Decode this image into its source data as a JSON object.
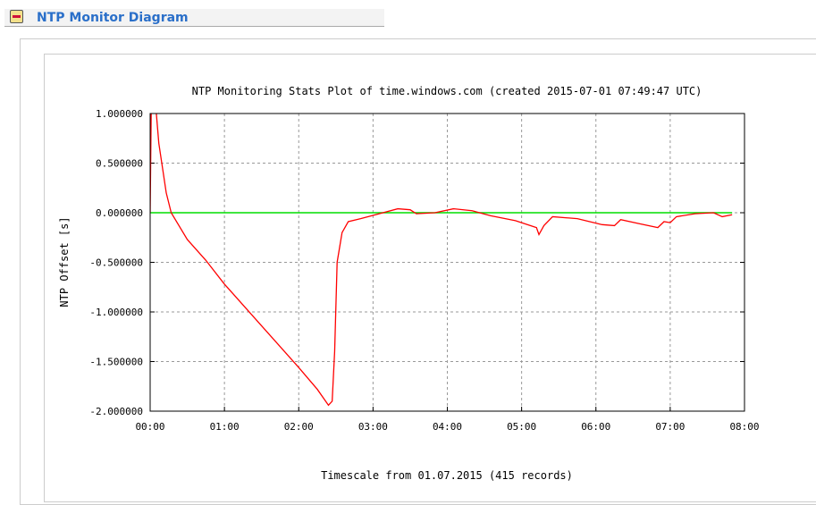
{
  "section": {
    "title": "NTP Monitor Diagram",
    "toggle_icon": "collapse-minus-icon"
  },
  "chart_data": {
    "type": "line",
    "title": "NTP Monitoring Stats Plot of time.windows.com (created 2015-07-01 07:49:47 UTC)",
    "xlabel": "Timescale from 01.07.2015 (415 records)",
    "ylabel": "NTP Offset [s]",
    "xlim": [
      "00:00",
      "08:00"
    ],
    "ylim": [
      -2.0,
      1.0
    ],
    "xticks": [
      "00:00",
      "01:00",
      "02:00",
      "03:00",
      "04:00",
      "05:00",
      "06:00",
      "07:00",
      "08:00"
    ],
    "yticks": [
      "1.000000",
      "0.500000",
      "0.000000",
      "-0.500000",
      "-1.000000",
      "-1.500000",
      "-2.000000"
    ],
    "grid": true,
    "series": [
      {
        "color": "#ff0000",
        "x": [
          "00:00",
          "00:01",
          "00:05",
          "00:07",
          "00:10",
          "00:13",
          "00:17",
          "00:30",
          "00:45",
          "01:00",
          "01:30",
          "02:00",
          "02:15",
          "02:24",
          "02:27",
          "02:29",
          "02:31",
          "02:35",
          "02:40",
          "02:50",
          "03:05",
          "03:20",
          "03:30",
          "03:35",
          "03:50",
          "04:05",
          "04:20",
          "04:35",
          "04:55",
          "05:12",
          "05:14",
          "05:18",
          "05:25",
          "05:45",
          "06:05",
          "06:15",
          "06:20",
          "06:35",
          "06:50",
          "06:55",
          "07:00",
          "07:05",
          "07:20",
          "07:35",
          "07:42",
          "07:50"
        ],
        "y": [
          0,
          1.2,
          1.0,
          0.7,
          0.45,
          0.2,
          0.0,
          -0.27,
          -0.48,
          -0.72,
          -1.14,
          -1.56,
          -1.78,
          -1.94,
          -1.9,
          -1.4,
          -0.5,
          -0.2,
          -0.09,
          -0.06,
          -0.01,
          0.04,
          0.03,
          -0.01,
          0.0,
          0.04,
          0.02,
          -0.03,
          -0.08,
          -0.15,
          -0.22,
          -0.13,
          -0.04,
          -0.06,
          -0.12,
          -0.13,
          -0.07,
          -0.11,
          -0.15,
          -0.09,
          -0.1,
          -0.04,
          -0.01,
          0.0,
          -0.04,
          -0.02
        ]
      }
    ],
    "reference_line": {
      "y": 0,
      "color": "#00dd00"
    }
  }
}
